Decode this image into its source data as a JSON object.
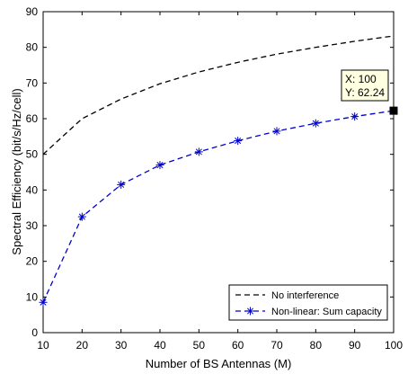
{
  "chart_data": {
    "type": "line",
    "xlabel": "Number of BS Antennas (M)",
    "ylabel": "Spectral Efficiency (bit/s/Hz/cell)",
    "xlim": [
      10,
      100
    ],
    "ylim": [
      0,
      90
    ],
    "xticks": [
      10,
      20,
      30,
      40,
      50,
      60,
      70,
      80,
      90,
      100
    ],
    "yticks": [
      0,
      10,
      20,
      30,
      40,
      50,
      60,
      70,
      80,
      90
    ],
    "grid": false,
    "legend_position": "bottom-right",
    "series": [
      {
        "name": "No interference",
        "color": "#000000",
        "line_style": "dashed",
        "marker": "none",
        "x": [
          10,
          20,
          30,
          40,
          50,
          60,
          70,
          80,
          90,
          100
        ],
        "y": [
          50,
          60,
          65.5,
          69.8,
          73.1,
          75.8,
          78.1,
          80.0,
          81.7,
          83.2
        ]
      },
      {
        "name": "Non-linear: Sum capacity",
        "color": "#0000cc",
        "line_style": "dashed",
        "marker": "asterisk",
        "x": [
          10,
          20,
          30,
          40,
          50,
          60,
          70,
          80,
          90,
          100
        ],
        "y": [
          8.5,
          32.5,
          41.5,
          47,
          50.7,
          53.8,
          56.5,
          58.7,
          60.6,
          62.24
        ]
      }
    ],
    "datatip": {
      "x_text": "X: 100",
      "y_text": "Y: 62.24",
      "x": 100,
      "y": 62.24
    }
  }
}
